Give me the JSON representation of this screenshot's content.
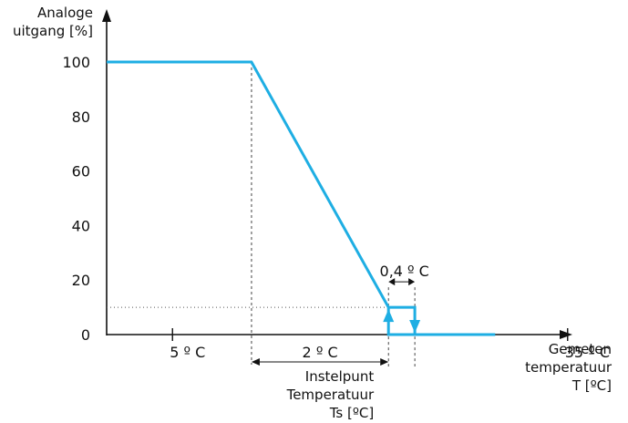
{
  "chart_data": {
    "type": "line",
    "ylabel": [
      "Analoge",
      "uitgang [%]"
    ],
    "xlabel": [
      "Gemeten",
      "temperatuur",
      "T [ºC]"
    ],
    "yticks": [
      0,
      20,
      40,
      60,
      80,
      100
    ],
    "ylim": [
      0,
      100
    ],
    "x_ticks": [
      {
        "value": 5,
        "label": "5 º C"
      },
      {
        "value": 35,
        "label": "35 º C"
      }
    ],
    "series": [
      {
        "points": [
          [
            0,
            100
          ],
          [
            11,
            100
          ],
          [
            21.4,
            10
          ],
          [
            23.4,
            10
          ],
          [
            23.4,
            0
          ],
          [
            21.4,
            0
          ],
          [
            21.4,
            10
          ]
        ]
      },
      {
        "points": [
          [
            23.4,
            0
          ],
          [
            29.5,
            0
          ]
        ]
      }
    ],
    "annotations": {
      "band": {
        "label": "2 º C",
        "from": 11,
        "to": 21.4
      },
      "hysteresis": {
        "label": "0,4 º C",
        "from": 21.4,
        "to": 23.4
      },
      "setpoint_label": [
        "Instelpunt",
        "Temperatuur",
        "Ts [ºC]"
      ],
      "threshold_y": 10
    },
    "colors": {
      "curve": "#1eaee3",
      "axis": "#111111"
    }
  }
}
